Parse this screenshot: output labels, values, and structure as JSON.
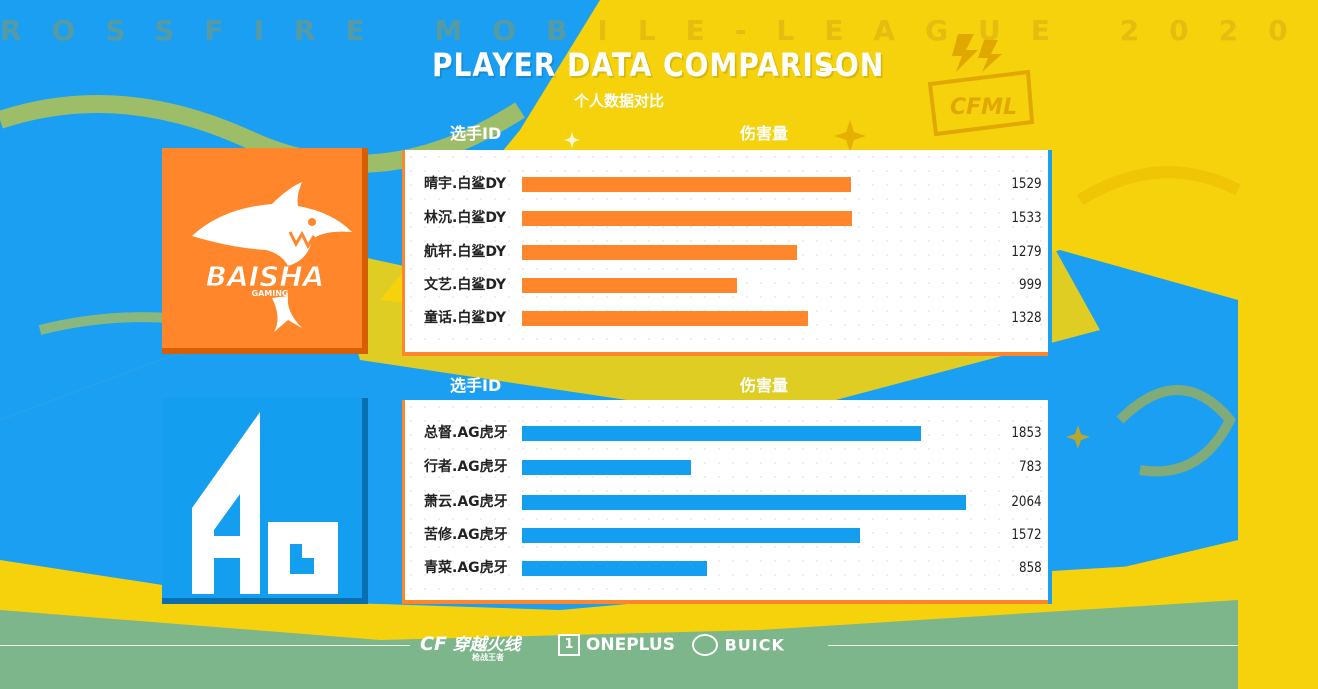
{
  "header": {
    "watermark": "ROSSFIRE MOBILE-LEAGUE 2020",
    "title": "PLAYER DATA COMPARISON",
    "subtitle": "个人数据对比",
    "league_badge": "CFML"
  },
  "colors": {
    "team1": "#ff862a",
    "team2": "#139ef0",
    "background_yellow": "#f6d20c",
    "background_blue": "#1a9ff2"
  },
  "chart_data": [
    {
      "type": "bar",
      "orientation": "horizontal",
      "team": "BAISHA GAMING",
      "team_logo_text": "BAISHA",
      "team_logo_sub": "GAMING",
      "xlabel": "伤害量",
      "ylabel": "选手ID",
      "xlim": [
        0,
        2100
      ],
      "categories": [
        "晴宇.白鲨DY",
        "林沉.白鲨DY",
        "航轩.白鲨DY",
        "文艺.白鲨DY",
        "童话.白鲨DY"
      ],
      "values": [
        1529,
        1533,
        1279,
        999,
        1328
      ],
      "labels": [
        "1529",
        "1533",
        "1279",
        "999",
        "1328"
      ]
    },
    {
      "type": "bar",
      "orientation": "horizontal",
      "team": "AG",
      "team_logo_text": "AG",
      "xlabel": "伤害量",
      "ylabel": "选手ID",
      "xlim": [
        0,
        2100
      ],
      "categories": [
        "总督.AG虎牙",
        "行者.AG虎牙",
        "萧云.AG虎牙",
        "苦修.AG虎牙",
        "青菜.AG虎牙"
      ],
      "values": [
        1853,
        783,
        2064,
        1572,
        858
      ],
      "labels": [
        "1853",
        "783",
        "2064",
        "1572",
        "858"
      ]
    }
  ],
  "footer": {
    "sponsor_1": "穿越火线",
    "sponsor_1_sub": "枪战王者",
    "sponsor_2": "ONEPLUS",
    "sponsor_3": "BUICK"
  }
}
